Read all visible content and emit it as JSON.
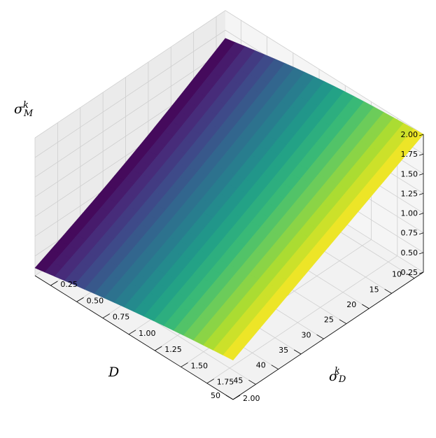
{
  "chart_data": {
    "type": "surface3d",
    "colormap": "viridis",
    "grid": true,
    "axes": {
      "D": {
        "label": "D",
        "range": [
          8,
          50
        ],
        "ticks": [
          "10",
          "15",
          "20",
          "25",
          "30",
          "35",
          "40",
          "45",
          "50"
        ]
      },
      "sigma_D": {
        "label": "σ",
        "label_sup": "k",
        "label_sub": "D",
        "range": [
          0.1,
          2.0
        ],
        "ticks": [
          "0.25",
          "0.50",
          "0.75",
          "1.00",
          "1.25",
          "1.50",
          "1.75",
          "2.00"
        ]
      },
      "sigma_M": {
        "label": "σ",
        "label_sup": "k",
        "label_sub": "M",
        "range": [
          0.25,
          2.0
        ],
        "ticks": [
          "0.25",
          "0.50",
          "0.75",
          "1.00",
          "1.25",
          "1.50",
          "1.75",
          "2.00"
        ]
      }
    },
    "surface_corners": [
      {
        "D": 8,
        "sigma_D": 2.0,
        "sigma_M": 2.0
      },
      {
        "D": 8,
        "sigma_D": 0.1,
        "sigma_M": 1.65
      },
      {
        "D": 50,
        "sigma_D": 2.0,
        "sigma_M": 0.75
      },
      {
        "D": 50,
        "sigma_D": 0.1,
        "sigma_M": 0.35
      }
    ],
    "color_trend": "yellow at high sigma_D, purple at low sigma_D"
  }
}
